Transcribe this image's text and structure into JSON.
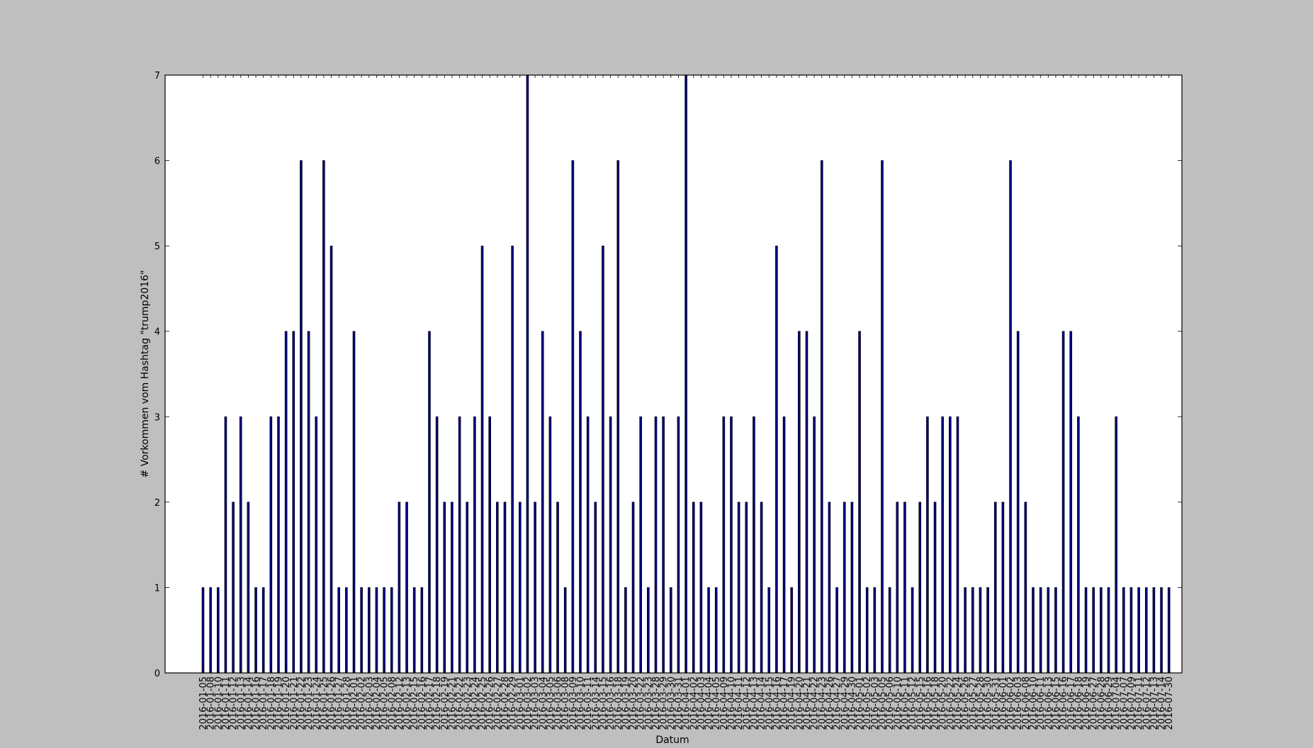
{
  "chart_data": {
    "type": "bar",
    "title": "",
    "xlabel": "Datum",
    "ylabel": "# Vorkommen vom Hashtag \"trump2016\"",
    "ylim": [
      0,
      7
    ],
    "yticks": [
      "0",
      "1",
      "2",
      "3",
      "4",
      "5",
      "6",
      "7"
    ],
    "grid": false,
    "bar_color": "#000080",
    "categories": [
      "2016-01-05",
      "2016-01-08",
      "2016-01-10",
      "2016-01-11",
      "2016-01-12",
      "2016-01-13",
      "2016-01-14",
      "2016-01-16",
      "2016-01-17",
      "2016-01-18",
      "2016-01-19",
      "2016-01-20",
      "2016-01-21",
      "2016-01-22",
      "2016-01-23",
      "2016-01-24",
      "2016-01-25",
      "2016-01-26",
      "2016-01-27",
      "2016-01-28",
      "2016-02-01",
      "2016-02-02",
      "2016-02-03",
      "2016-02-04",
      "2016-02-05",
      "2016-02-08",
      "2016-02-12",
      "2016-02-13",
      "2016-02-15",
      "2016-02-16",
      "2016-02-17",
      "2016-02-18",
      "2016-02-19",
      "2016-02-21",
      "2016-02-22",
      "2016-02-23",
      "2016-02-24",
      "2016-02-25",
      "2016-02-26",
      "2016-02-27",
      "2016-02-28",
      "2016-02-29",
      "2016-03-01",
      "2016-03-02",
      "2016-03-03",
      "2016-03-04",
      "2016-03-05",
      "2016-03-06",
      "2016-03-08",
      "2016-03-09",
      "2016-03-10",
      "2016-03-11",
      "2016-03-14",
      "2016-03-15",
      "2016-03-16",
      "2016-03-18",
      "2016-03-19",
      "2016-03-20",
      "2016-03-22",
      "2016-03-23",
      "2016-03-28",
      "2016-03-29",
      "2016-03-30",
      "2016-03-31",
      "2016-04-01",
      "2016-04-02",
      "2016-04-03",
      "2016-04-04",
      "2016-04-05",
      "2016-04-09",
      "2016-04-10",
      "2016-04-11",
      "2016-04-12",
      "2016-04-13",
      "2016-04-14",
      "2016-04-15",
      "2016-04-16",
      "2016-04-17",
      "2016-04-19",
      "2016-04-20",
      "2016-04-21",
      "2016-04-22",
      "2016-04-23",
      "2016-04-26",
      "2016-04-27",
      "2016-04-29",
      "2016-04-30",
      "2016-05-01",
      "2016-05-02",
      "2016-05-03",
      "2016-05-05",
      "2016-05-06",
      "2016-05-10",
      "2016-05-11",
      "2016-05-12",
      "2016-05-15",
      "2016-05-16",
      "2016-05-18",
      "2016-05-20",
      "2016-05-22",
      "2016-05-24",
      "2016-05-26",
      "2016-05-27",
      "2016-05-28",
      "2016-05-30",
      "2016-05-31",
      "2016-06-01",
      "2016-06-02",
      "2016-06-03",
      "2016-06-08",
      "2016-06-10",
      "2016-06-11",
      "2016-06-13",
      "2016-06-15",
      "2016-06-16",
      "2016-06-17",
      "2016-06-18",
      "2016-06-19",
      "2016-06-27",
      "2016-06-28",
      "2016-06-29",
      "2016-07-04",
      "2016-07-07",
      "2016-07-09",
      "2016-07-11",
      "2016-07-12",
      "2016-07-13",
      "2016-07-14",
      "2016-07-30"
    ],
    "series": [
      {
        "values": [
          1,
          1,
          1,
          3,
          2,
          3,
          2,
          1,
          1,
          3,
          3,
          4,
          4,
          6,
          4,
          3,
          6,
          5,
          1,
          1,
          4,
          1,
          1,
          1,
          1,
          1,
          2,
          2,
          1,
          1,
          4,
          3,
          2,
          2,
          3,
          2,
          3,
          5,
          3,
          2,
          2,
          5,
          2,
          7,
          2,
          4,
          3,
          2,
          1,
          6,
          4,
          3,
          2,
          5,
          3,
          6,
          1,
          2,
          3,
          1,
          3,
          3,
          1,
          3,
          7,
          2,
          2,
          1,
          1,
          3,
          3,
          2,
          2,
          3,
          2,
          1,
          5,
          3,
          1,
          4,
          4,
          3,
          6,
          2,
          1,
          2,
          2,
          4,
          1,
          1,
          6,
          1,
          2,
          2,
          1,
          2,
          3,
          2,
          3,
          3,
          3,
          1,
          1,
          1,
          1,
          2,
          2,
          6,
          4,
          2,
          1,
          1,
          1,
          1,
          4,
          4,
          3,
          1,
          1,
          1,
          1,
          3,
          1,
          1,
          1,
          1,
          1,
          1,
          1
        ]
      }
    ]
  }
}
